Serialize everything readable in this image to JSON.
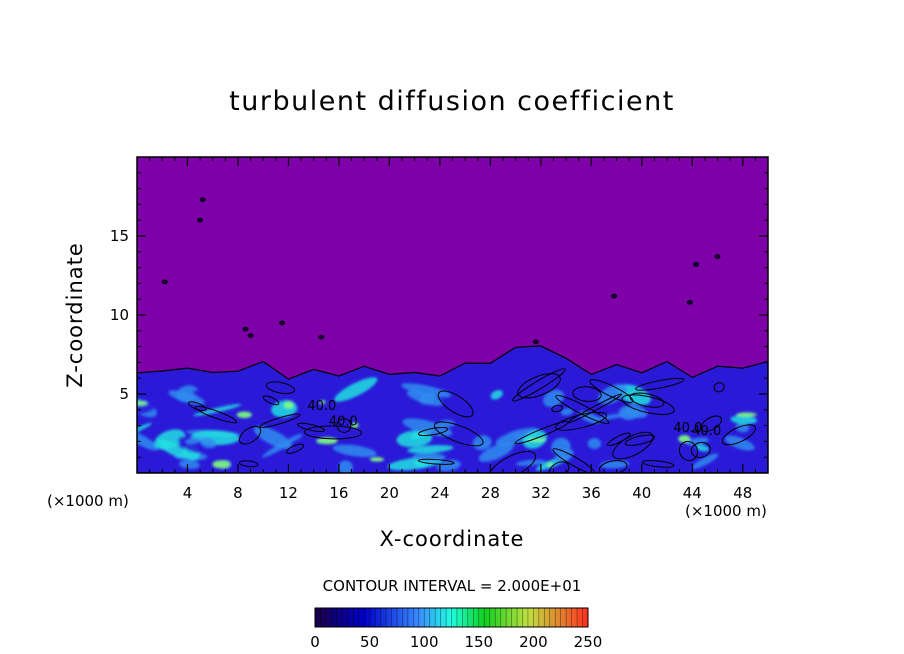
{
  "chart_data": {
    "type": "heatmap",
    "title": "turbulent diffusion coefficient",
    "xlabel": "X-coordinate",
    "ylabel": "Z-coordinate",
    "x_unit_left": "(×1000 m)",
    "x_unit_right": "(×1000 m)",
    "x_ticks": [
      4,
      8,
      12,
      16,
      20,
      24,
      28,
      32,
      36,
      40,
      44,
      48
    ],
    "y_ticks": [
      5,
      10,
      15
    ],
    "xlim": [
      0,
      50
    ],
    "ylim": [
      0,
      20
    ],
    "contour_interval_text": "CONTOUR INTERVAL = 2.000E+01",
    "colorbar": {
      "ticks": [
        0,
        50,
        100,
        150,
        200,
        250
      ],
      "range": [
        0,
        250
      ],
      "colors": [
        "#1a0044",
        "#0000c8",
        "#3a8cff",
        "#20ffe0",
        "#10d020",
        "#c0e040",
        "#ff3020"
      ]
    },
    "colors": {
      "background_field": "#7d00a8",
      "low_layer": "#2a1ad8",
      "mid": "#2f8cf0",
      "high": "#20e0e0",
      "peak": "#80ff80"
    },
    "contour_labels": [
      "40.0",
      "40.0",
      "40.0",
      "40.0"
    ],
    "turbulent_layer_top_approx": [
      [
        0,
        6.5
      ],
      [
        2,
        6.3
      ],
      [
        4,
        6.8
      ],
      [
        6,
        6.2
      ],
      [
        8,
        6.6
      ],
      [
        10,
        6.9
      ],
      [
        12,
        6.1
      ],
      [
        14,
        6.4
      ],
      [
        16,
        6.3
      ],
      [
        18,
        6.6
      ],
      [
        20,
        6.4
      ],
      [
        22,
        6.2
      ],
      [
        24,
        6.3
      ],
      [
        26,
        6.8
      ],
      [
        28,
        7.1
      ],
      [
        30,
        7.8
      ],
      [
        32,
        8.2
      ],
      [
        34,
        7.1
      ],
      [
        36,
        6.4
      ],
      [
        38,
        6.7
      ],
      [
        40,
        6.5
      ],
      [
        42,
        6.9
      ],
      [
        44,
        6.2
      ],
      [
        46,
        6.6
      ],
      [
        48,
        6.8
      ],
      [
        50,
        6.9
      ]
    ]
  }
}
